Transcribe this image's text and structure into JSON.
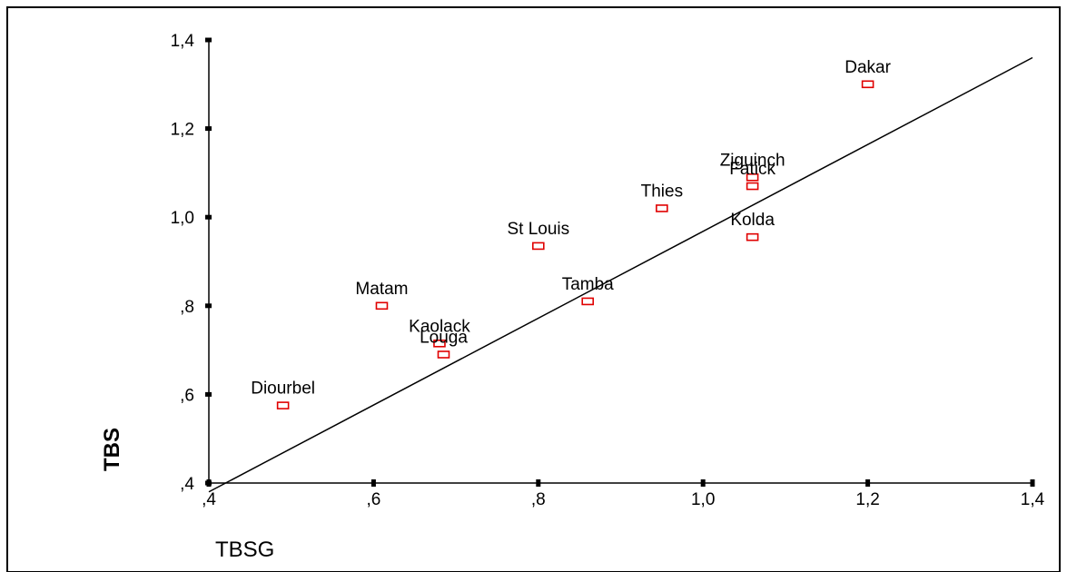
{
  "chart_data": {
    "type": "scatter",
    "xlabel": "TBSG",
    "ylabel": "TBS",
    "xlim": [
      0.4,
      1.4
    ],
    "ylim": [
      0.4,
      1.4
    ],
    "x_ticks": [
      0.4,
      0.6,
      0.8,
      1.0,
      1.2,
      1.4
    ],
    "y_ticks": [
      0.4,
      0.6,
      0.8,
      1.0,
      1.2,
      1.4
    ],
    "x_tick_labels": [
      ",4",
      ",6",
      ",8",
      "1,0",
      "1,2",
      "1,4"
    ],
    "y_tick_labels": [
      ",4",
      ",6",
      ",8",
      "1,0",
      "1,2",
      "1,4"
    ],
    "grid": false,
    "marker_color": "#e00000",
    "line_color": "#000000",
    "points": [
      {
        "label": "Dakar",
        "x": 1.2,
        "y": 1.3
      },
      {
        "label": "Ziguinch",
        "x": 1.06,
        "y": 1.09
      },
      {
        "label": "Fatick",
        "x": 1.06,
        "y": 1.07
      },
      {
        "label": "Thies",
        "x": 0.95,
        "y": 1.02
      },
      {
        "label": "Kolda",
        "x": 1.06,
        "y": 0.955
      },
      {
        "label": "St Louis",
        "x": 0.8,
        "y": 0.935
      },
      {
        "label": "Tamba",
        "x": 0.86,
        "y": 0.81
      },
      {
        "label": "Matam",
        "x": 0.61,
        "y": 0.8
      },
      {
        "label": "Kaolack",
        "x": 0.68,
        "y": 0.715
      },
      {
        "label": "Louga",
        "x": 0.685,
        "y": 0.69
      },
      {
        "label": "Diourbel",
        "x": 0.49,
        "y": 0.575
      }
    ],
    "reference_line": {
      "x": [
        0.4,
        1.4
      ],
      "y": [
        0.38,
        1.36
      ]
    }
  }
}
